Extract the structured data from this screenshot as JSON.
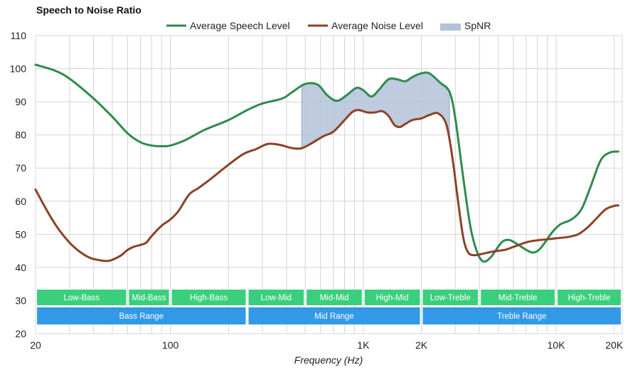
{
  "chart_data": {
    "type": "line",
    "title": "Speech to Noise Ratio",
    "xlabel": "Frequency (Hz)",
    "ylabel": "",
    "x_scale": "log",
    "xlim": [
      20,
      22000
    ],
    "ylim": [
      20,
      110
    ],
    "y_ticks": [
      20,
      30,
      40,
      50,
      60,
      70,
      80,
      90,
      100,
      110
    ],
    "x_ticks": [
      {
        "value": 20,
        "label": "20"
      },
      {
        "value": 100,
        "label": "100"
      },
      {
        "value": 1000,
        "label": "1K"
      },
      {
        "value": 2000,
        "label": "2K"
      },
      {
        "value": 10000,
        "label": "10K"
      },
      {
        "value": 20000,
        "label": "20K"
      }
    ],
    "grid": true,
    "legend": [
      {
        "name": "Average Speech Level",
        "color": "#2e8b4e",
        "kind": "line"
      },
      {
        "name": "Average Noise Level",
        "color": "#8b4226",
        "kind": "line"
      },
      {
        "name": "SpNR",
        "color": "#b4c2d9",
        "kind": "area"
      }
    ],
    "series": [
      {
        "name": "Average Speech Level",
        "color": "#2e8b4e",
        "points": [
          [
            20,
            101.2
          ],
          [
            25,
            99.5
          ],
          [
            30,
            97
          ],
          [
            40,
            91
          ],
          [
            50,
            85.5
          ],
          [
            60,
            80.5
          ],
          [
            70,
            77.8
          ],
          [
            80,
            76.8
          ],
          [
            90,
            76.6
          ],
          [
            100,
            76.8
          ],
          [
            120,
            78.5
          ],
          [
            150,
            81.5
          ],
          [
            200,
            84.5
          ],
          [
            250,
            87.5
          ],
          [
            300,
            89.5
          ],
          [
            380,
            91
          ],
          [
            430,
            93
          ],
          [
            500,
            95.4
          ],
          [
            580,
            95.2
          ],
          [
            650,
            92
          ],
          [
            730,
            90.3
          ],
          [
            820,
            92
          ],
          [
            920,
            94.2
          ],
          [
            1000,
            93.5
          ],
          [
            1100,
            91.6
          ],
          [
            1200,
            93.5
          ],
          [
            1350,
            96.8
          ],
          [
            1500,
            96.8
          ],
          [
            1650,
            96.2
          ],
          [
            1800,
            97.5
          ],
          [
            2000,
            98.6
          ],
          [
            2200,
            98.6
          ],
          [
            2500,
            95.8
          ],
          [
            2800,
            93
          ],
          [
            3000,
            85
          ],
          [
            3300,
            67
          ],
          [
            3600,
            52
          ],
          [
            3900,
            44.5
          ],
          [
            4200,
            41.8
          ],
          [
            4600,
            43.2
          ],
          [
            5200,
            47.5
          ],
          [
            5700,
            48.3
          ],
          [
            6300,
            47
          ],
          [
            7000,
            45.3
          ],
          [
            7600,
            44.5
          ],
          [
            8300,
            45.8
          ],
          [
            9500,
            50.5
          ],
          [
            10500,
            53
          ],
          [
            12000,
            54.5
          ],
          [
            13500,
            57.5
          ],
          [
            15000,
            64
          ],
          [
            17000,
            72.3
          ],
          [
            19000,
            74.7
          ],
          [
            21000,
            75
          ]
        ]
      },
      {
        "name": "Average Noise Level",
        "color": "#8b4226",
        "points": [
          [
            20,
            63.5
          ],
          [
            23,
            57
          ],
          [
            26,
            52
          ],
          [
            30,
            47.5
          ],
          [
            34,
            44.7
          ],
          [
            38,
            43
          ],
          [
            42,
            42.3
          ],
          [
            48,
            42
          ],
          [
            55,
            43.5
          ],
          [
            60,
            45.3
          ],
          [
            65,
            46.3
          ],
          [
            70,
            46.8
          ],
          [
            75,
            47.5
          ],
          [
            80,
            49.5
          ],
          [
            90,
            52.6
          ],
          [
            100,
            54.5
          ],
          [
            110,
            57
          ],
          [
            125,
            62
          ],
          [
            140,
            64
          ],
          [
            160,
            66.5
          ],
          [
            200,
            71
          ],
          [
            240,
            74.3
          ],
          [
            280,
            75.8
          ],
          [
            320,
            77.3
          ],
          [
            370,
            77
          ],
          [
            430,
            76
          ],
          [
            480,
            76
          ],
          [
            540,
            77.5
          ],
          [
            620,
            79.6
          ],
          [
            700,
            81
          ],
          [
            800,
            84.5
          ],
          [
            880,
            87
          ],
          [
            950,
            87.5
          ],
          [
            1050,
            86.8
          ],
          [
            1150,
            86.8
          ],
          [
            1250,
            87.2
          ],
          [
            1350,
            85.8
          ],
          [
            1450,
            83
          ],
          [
            1550,
            82.4
          ],
          [
            1650,
            83.3
          ],
          [
            1800,
            84.5
          ],
          [
            2000,
            85
          ],
          [
            2200,
            86
          ],
          [
            2450,
            86.5
          ],
          [
            2700,
            83
          ],
          [
            2900,
            73
          ],
          [
            3100,
            60
          ],
          [
            3300,
            49
          ],
          [
            3500,
            44.5
          ],
          [
            3800,
            43.7
          ],
          [
            4200,
            44.2
          ],
          [
            4700,
            44.8
          ],
          [
            5400,
            45.3
          ],
          [
            6000,
            46.2
          ],
          [
            7000,
            47.6
          ],
          [
            8000,
            48.2
          ],
          [
            9000,
            48.5
          ],
          [
            10000,
            48.8
          ],
          [
            11500,
            49.2
          ],
          [
            13000,
            50
          ],
          [
            14500,
            52
          ],
          [
            16000,
            54.5
          ],
          [
            18000,
            57.5
          ],
          [
            20000,
            58.6
          ],
          [
            21000,
            58.7
          ]
        ]
      }
    ],
    "spnr_range": [
      480,
      2800
    ],
    "range_bands": [
      {
        "label": "Low-Bass",
        "from": 20,
        "to": 60,
        "row": 1,
        "color": "#3bcf7d"
      },
      {
        "label": "Mid-Bass",
        "from": 60,
        "to": 100,
        "row": 1,
        "color": "#3bcf7d"
      },
      {
        "label": "High-Bass",
        "from": 100,
        "to": 250,
        "row": 1,
        "color": "#3bcf7d"
      },
      {
        "label": "Low-Mid",
        "from": 250,
        "to": 500,
        "row": 1,
        "color": "#3bcf7d"
      },
      {
        "label": "Mid-Mid",
        "from": 500,
        "to": 1000,
        "row": 1,
        "color": "#3bcf7d"
      },
      {
        "label": "High-Mid",
        "from": 1000,
        "to": 2000,
        "row": 1,
        "color": "#3bcf7d"
      },
      {
        "label": "Low-Treble",
        "from": 2000,
        "to": 4000,
        "row": 1,
        "color": "#3bcf7d"
      },
      {
        "label": "Mid-Treble",
        "from": 4000,
        "to": 10000,
        "row": 1,
        "color": "#3bcf7d"
      },
      {
        "label": "High-Treble",
        "from": 10000,
        "to": 22000,
        "row": 1,
        "color": "#3bcf7d"
      },
      {
        "label": "Bass Range",
        "from": 20,
        "to": 250,
        "row": 2,
        "color": "#3399e6"
      },
      {
        "label": "Mid Range",
        "from": 250,
        "to": 2000,
        "row": 2,
        "color": "#3399e6"
      },
      {
        "label": "Treble Range",
        "from": 2000,
        "to": 22000,
        "row": 2,
        "color": "#3399e6"
      }
    ]
  }
}
